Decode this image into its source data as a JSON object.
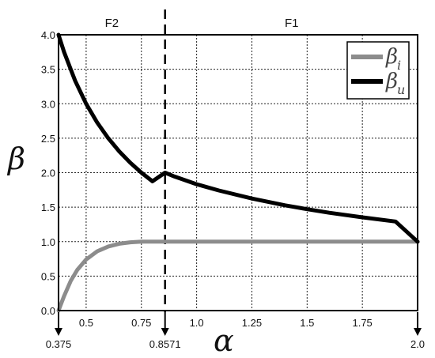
{
  "chart_data": {
    "type": "line",
    "xlabel": "α",
    "ylabel": "β",
    "xlim": [
      0.375,
      2.0
    ],
    "ylim": [
      0.0,
      4.0
    ],
    "x_ticks": [
      0.5,
      0.75,
      1.0,
      1.25,
      1.5,
      1.75
    ],
    "x_tick_labels": [
      "0.5",
      "0.75",
      "1.0",
      "1.25",
      "1.5",
      "1.75"
    ],
    "x_extra_ticks": [
      0.375,
      0.8571,
      2.0
    ],
    "x_extra_tick_labels": [
      "0.375",
      "0.8571",
      "2.0"
    ],
    "y_ticks": [
      0.0,
      0.5,
      1.0,
      1.5,
      2.0,
      2.5,
      3.0,
      3.5,
      4.0
    ],
    "y_tick_labels": [
      "0.0",
      "0.5",
      "1.0",
      "1.5",
      "2.0",
      "2.5",
      "3.0",
      "3.5",
      "4.0"
    ],
    "grid": true,
    "legend_position": "top-right",
    "divider_x": 0.8571,
    "regions": [
      {
        "label": "F2",
        "x_center": 0.616
      },
      {
        "label": "F1",
        "x_center": 1.43
      }
    ],
    "series": [
      {
        "name": "β",
        "subscript": "i",
        "color": "#8c8c8c",
        "x": [
          0.375,
          0.4,
          0.43,
          0.46,
          0.5,
          0.55,
          0.6,
          0.65,
          0.7,
          0.75,
          0.8,
          0.8571,
          1.0,
          1.25,
          1.5,
          1.75,
          2.0
        ],
        "y": [
          0.0,
          0.21,
          0.43,
          0.59,
          0.74,
          0.86,
          0.93,
          0.97,
          0.99,
          1.0,
          1.0,
          1.0,
          1.0,
          1.0,
          1.0,
          1.0,
          1.0
        ]
      },
      {
        "name": "β",
        "subscript": "u",
        "color": "#000000",
        "x": [
          0.375,
          0.4,
          0.45,
          0.5,
          0.55,
          0.6,
          0.65,
          0.7,
          0.75,
          0.8,
          0.8571,
          0.9,
          1.0,
          1.1,
          1.25,
          1.4,
          1.5,
          1.6,
          1.75,
          1.9,
          2.0
        ],
        "y": [
          4.0,
          3.75,
          3.333,
          3.0,
          2.727,
          2.5,
          2.308,
          2.143,
          2.0,
          1.875,
          2.0,
          1.944,
          1.833,
          1.742,
          1.625,
          1.527,
          1.47,
          1.419,
          1.352,
          1.292,
          1.0
        ]
      }
    ]
  }
}
